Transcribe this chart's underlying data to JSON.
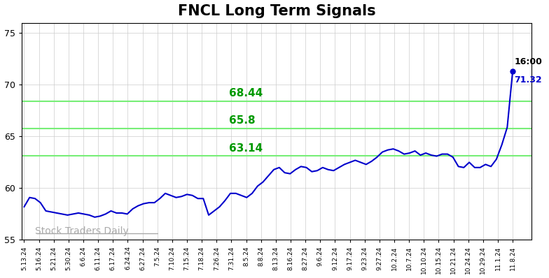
{
  "title": "FNCL Long Term Signals",
  "title_fontsize": 15,
  "title_fontweight": "bold",
  "background_color": "#ffffff",
  "plot_bg_color": "#ffffff",
  "line_color": "#0000cc",
  "line_width": 1.5,
  "hlines": [
    68.44,
    65.8,
    63.14
  ],
  "hline_color": "#77ee77",
  "hline_labels_color": "#009900",
  "hline_fontsize": 11,
  "watermark": "Stock Traders Daily",
  "watermark_color": "#aaaaaa",
  "watermark_fontsize": 10,
  "annotation_time": "16:00",
  "annotation_price": "71.32",
  "annotation_price_color": "#0000cc",
  "annotation_time_color": "#000000",
  "annotation_fontsize": 9,
  "last_dot_color": "#0000cc",
  "ylim": [
    55,
    76
  ],
  "yticks": [
    55,
    60,
    65,
    70,
    75
  ],
  "grid_color": "#cccccc",
  "grid_linewidth": 0.5,
  "xtick_labels": [
    "5.13.24",
    "5.16.24",
    "5.21.24",
    "5.30.24",
    "6.6.24",
    "6.11.24",
    "6.17.24",
    "6.24.24",
    "6.27.24",
    "7.5.24",
    "7.10.24",
    "7.15.24",
    "7.18.24",
    "7.26.24",
    "7.31.24",
    "8.5.24",
    "8.8.24",
    "8.13.24",
    "8.16.24",
    "8.27.24",
    "9.6.24",
    "9.12.24",
    "9.17.24",
    "9.23.24",
    "9.27.24",
    "10.2.24",
    "10.7.24",
    "10.10.24",
    "10.15.24",
    "10.21.24",
    "10.24.24",
    "10.29.24",
    "11.1.24",
    "11.8.24"
  ],
  "prices": [
    58.2,
    59.1,
    59.0,
    58.6,
    57.8,
    57.7,
    57.6,
    57.5,
    57.4,
    57.5,
    57.6,
    57.5,
    57.4,
    57.2,
    57.3,
    57.5,
    57.8,
    57.6,
    57.6,
    57.5,
    58.0,
    58.3,
    58.5,
    58.6,
    58.6,
    59.0,
    59.5,
    59.3,
    59.1,
    59.2,
    59.4,
    59.3,
    59.0,
    59.0,
    57.4,
    57.8,
    58.2,
    58.8,
    59.5,
    59.5,
    59.3,
    59.1,
    59.5,
    60.2,
    60.6,
    61.2,
    61.8,
    62.0,
    61.5,
    61.4,
    61.8,
    62.1,
    62.0,
    61.6,
    61.7,
    62.0,
    61.8,
    61.7,
    62.0,
    62.3,
    62.5,
    62.7,
    62.5,
    62.3,
    62.6,
    63.0,
    63.5,
    63.7,
    63.8,
    63.6,
    63.3,
    63.4,
    63.6,
    63.2,
    63.4,
    63.2,
    63.1,
    63.3,
    63.3,
    63.0,
    62.1,
    62.0,
    62.5,
    62.0,
    62.0,
    62.3,
    62.1,
    62.8,
    64.2,
    65.9,
    71.32
  ]
}
